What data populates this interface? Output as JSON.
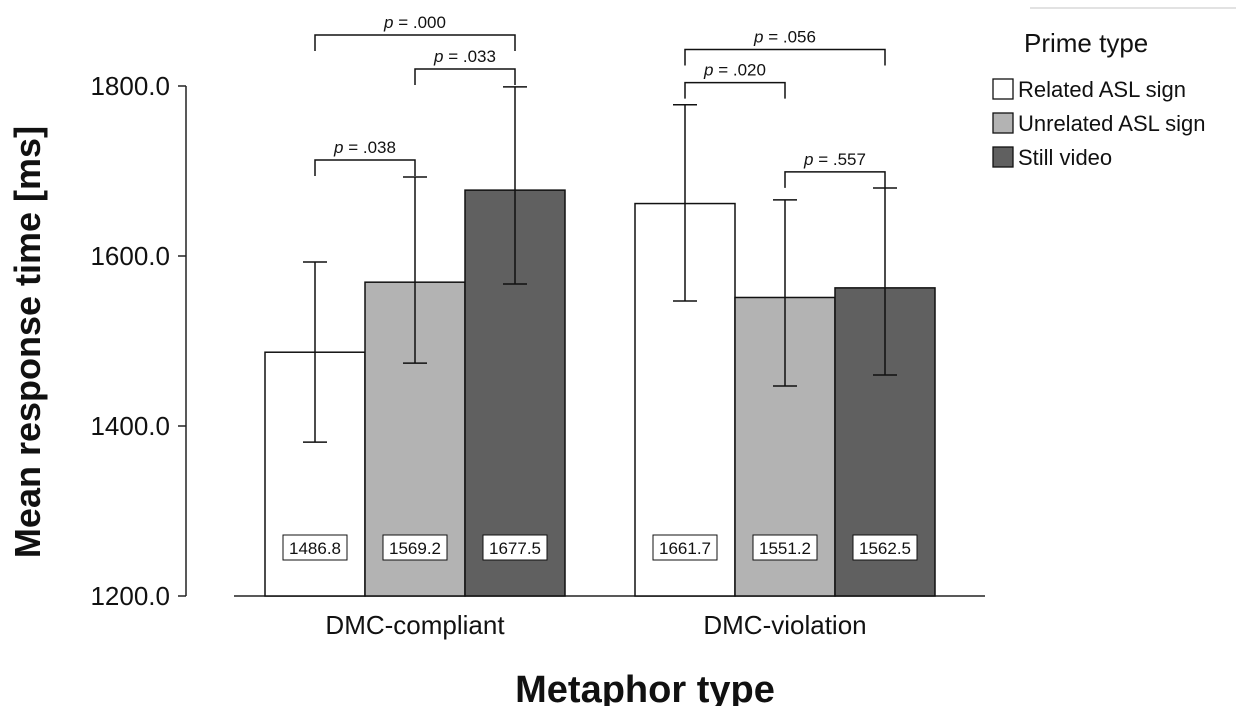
{
  "chart_data": {
    "type": "bar",
    "xlabel": "Metaphor type",
    "ylabel": "Mean response time [ms]",
    "ylim": [
      1200,
      1800
    ],
    "yticks": [
      "1200.0",
      "1400.0",
      "1600.0",
      "1800.0"
    ],
    "grid": false,
    "legend_title": "Prime type",
    "legend_position": "top-right",
    "categories": [
      "DMC-compliant",
      "DMC-violation"
    ],
    "series": [
      {
        "name": "Related ASL sign",
        "color": "#ffffff",
        "values": [
          1486.8,
          1661.7
        ],
        "labels": [
          "1486.8",
          "1661.7"
        ],
        "error_low": [
          1381,
          1547
        ],
        "error_high": [
          1593,
          1778
        ]
      },
      {
        "name": "Unrelated ASL sign",
        "color": "#b3b3b3",
        "values": [
          1569.2,
          1551.2
        ],
        "labels": [
          "1569.2",
          "1551.2"
        ],
        "error_low": [
          1474,
          1447
        ],
        "error_high": [
          1693,
          1666
        ]
      },
      {
        "name": "Still video",
        "color": "#606060",
        "values": [
          1677.5,
          1562.5
        ],
        "labels": [
          "1677.5",
          "1562.5"
        ],
        "error_low": [
          1567,
          1460
        ],
        "error_high": [
          1799,
          1680
        ]
      }
    ],
    "annotations": [
      {
        "category": 0,
        "from": 0,
        "to": 1,
        "level": 1713,
        "p_prefix": "p",
        "p_value": " = .038"
      },
      {
        "category": 0,
        "from": 1,
        "to": 2,
        "level": 1820,
        "p_prefix": "p",
        "p_value": " = .033"
      },
      {
        "category": 0,
        "from": 0,
        "to": 2,
        "level": 1860,
        "p_prefix": "p",
        "p_value": " = .000"
      },
      {
        "category": 1,
        "from": 0,
        "to": 1,
        "level": 1804,
        "p_prefix": "p",
        "p_value": " = .020"
      },
      {
        "category": 1,
        "from": 0,
        "to": 2,
        "level": 1843,
        "p_prefix": "p",
        "p_value": " = .056"
      },
      {
        "category": 1,
        "from": 1,
        "to": 2,
        "level": 1699,
        "p_prefix": "p",
        "p_value": " = .557"
      }
    ]
  }
}
